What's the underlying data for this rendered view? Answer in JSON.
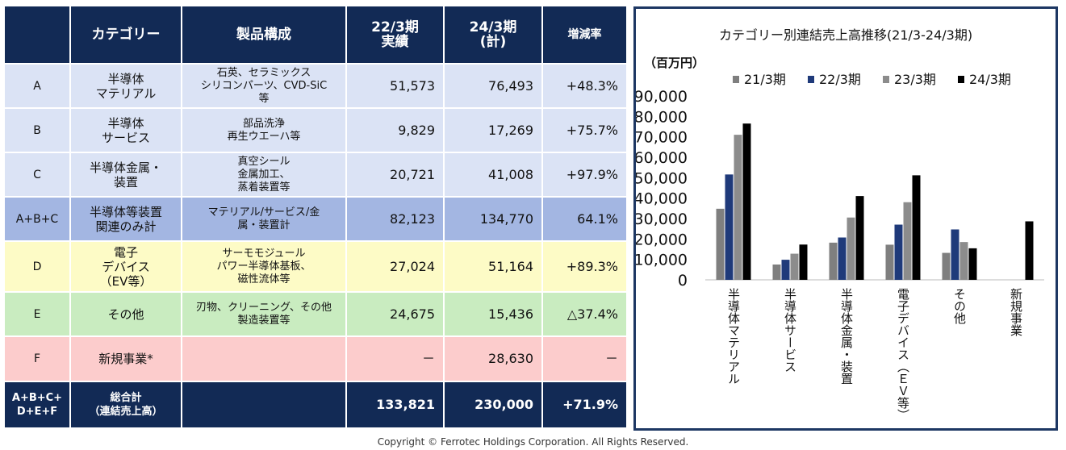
{
  "table": {
    "headers": [
      "",
      "カテゴリー",
      "製品構成",
      "22/3期\n実績",
      "24/3期\n(計)",
      "増減率"
    ],
    "rows": [
      {
        "code": "A",
        "category": "半導体\nマテリアル",
        "components": "石英、セラミックス\nシリコンパーツ、CVD-SiC\n等",
        "fy22": "51,573",
        "fy24": "76,493",
        "rate": "+48.3%"
      },
      {
        "code": "B",
        "category": "半導体\nサービス",
        "components": "部品洗浄\n再生ウエーハ等",
        "fy22": "9,829",
        "fy24": "17,269",
        "rate": "+75.7%"
      },
      {
        "code": "C",
        "category": "半導体金属・\n装置",
        "components": "真空シール\n金属加工、\n蒸着装置等",
        "fy22": "20,721",
        "fy24": "41,008",
        "rate": "+97.9%"
      },
      {
        "code": "A+B+C",
        "category": "半導体等装置\n関連のみ計",
        "components": "マテリアル/サービス/金\n属・装置計",
        "fy22": "82,123",
        "fy24": "134,770",
        "rate": "64.1%"
      },
      {
        "code": "D",
        "category": "電子\nデバイス\n（EV等）",
        "components": "サーモモジュール\nパワー半導体基板、\n磁性流体等",
        "fy22": "27,024",
        "fy24": "51,164",
        "rate": "+89.3%"
      },
      {
        "code": "E",
        "category": "その他",
        "components": "刃物、クリーニング、その他\n製造装置等",
        "fy22": "24,675",
        "fy24": "15,436",
        "rate": "△37.4%"
      },
      {
        "code": "F",
        "category": "新規事業*",
        "components": "",
        "fy22": "－",
        "fy24": "28,630",
        "rate": "－"
      },
      {
        "code": "A+B+C+\nD+E+F",
        "category": "総合計\n（連結売上高）",
        "components": "",
        "fy22": "133,821",
        "fy24": "230,000",
        "rate": "+71.9%"
      }
    ]
  },
  "chart_data": {
    "type": "bar",
    "title": "カテゴリー別連結売上高推移(21/3-24/3期)",
    "ylabel": "（百万円）",
    "ylim": [
      0,
      90000
    ],
    "yticks": [
      "0",
      "10,000",
      "20,000",
      "30,000",
      "40,000",
      "50,000",
      "60,000",
      "70,000",
      "80,000",
      "90,000"
    ],
    "categories": [
      "半導体マテリアル",
      "半導体サービス",
      "半導体金属・装置",
      "電子デバイス（ＥＶ等）",
      "その他",
      "新規事業"
    ],
    "series": [
      {
        "name": "21/3期",
        "color": "#7f7f7f",
        "values": [
          34800,
          7500,
          18200,
          17200,
          13200,
          0
        ]
      },
      {
        "name": "22/3期",
        "color": "#1f3a7a",
        "values": [
          51573,
          9829,
          20721,
          27024,
          24675,
          0
        ]
      },
      {
        "name": "23/3期",
        "color": "#8c8c8c",
        "values": [
          71000,
          12800,
          30500,
          38000,
          18500,
          0
        ]
      },
      {
        "name": "24/3期",
        "color": "#000000",
        "values": [
          76493,
          17269,
          41008,
          51164,
          15436,
          28630
        ]
      }
    ],
    "legend": "top"
  },
  "footer": {
    "copyright": "Copyright © Ferrotec Holdings Corporation. All Rights Reserved."
  }
}
